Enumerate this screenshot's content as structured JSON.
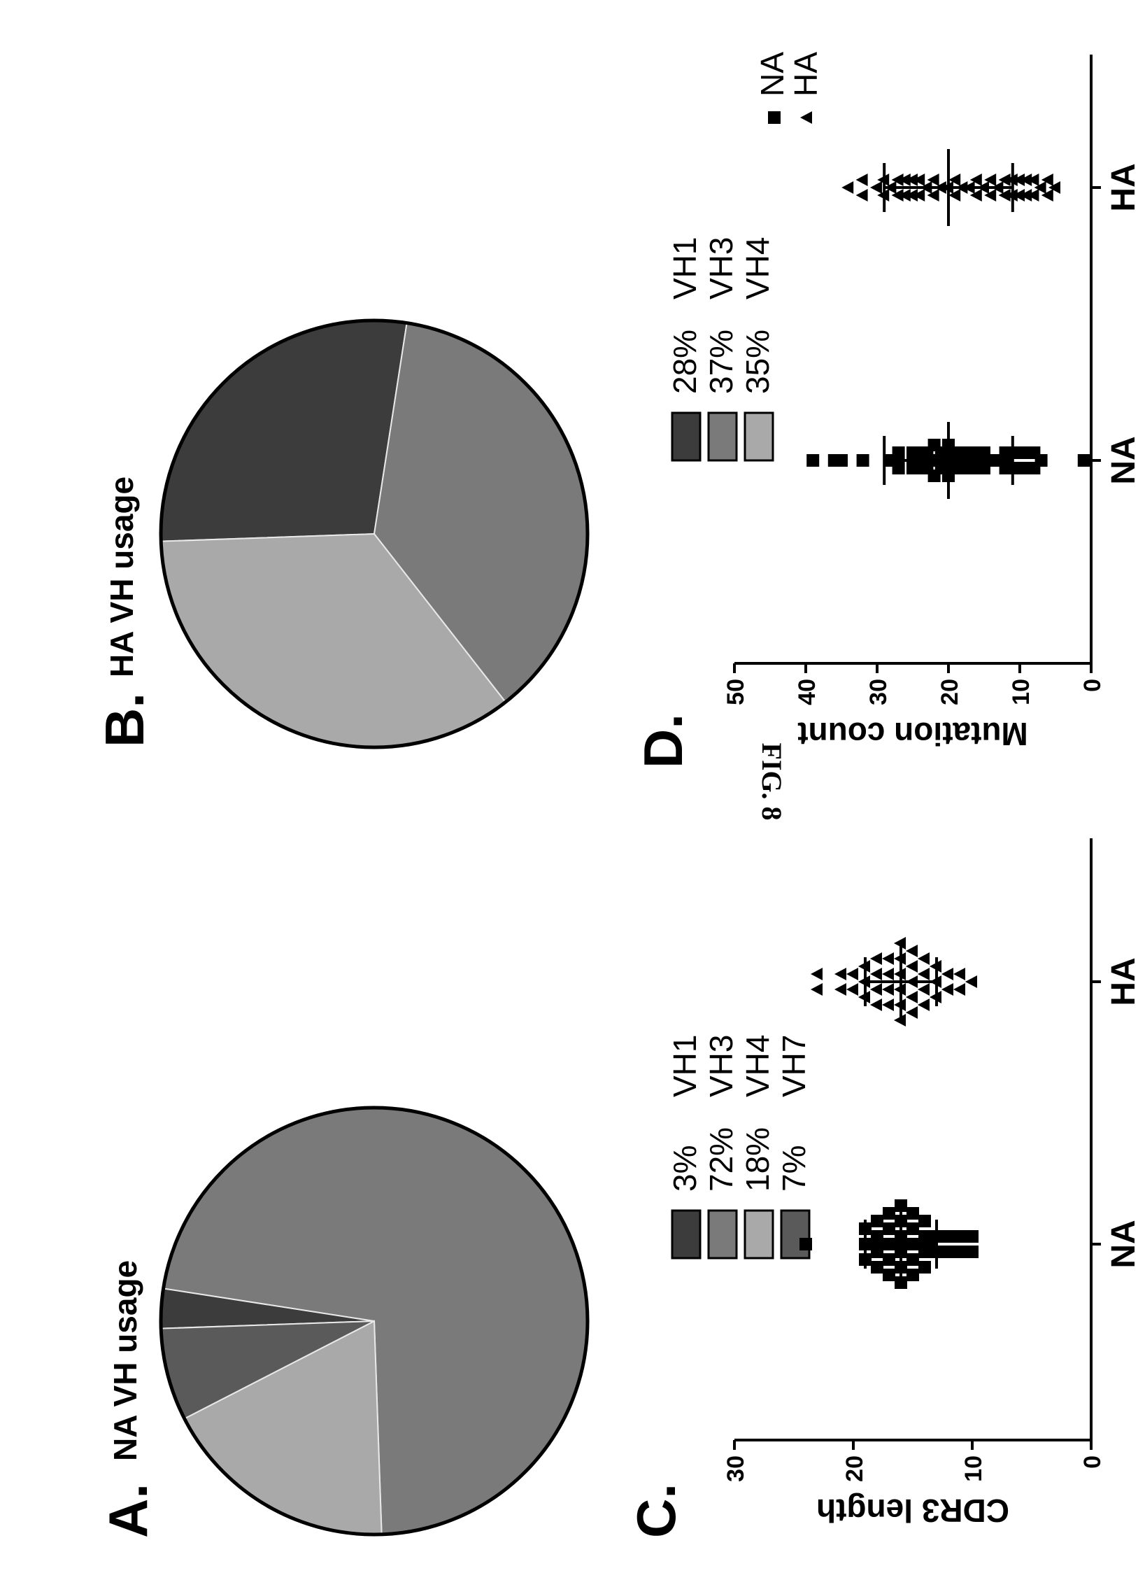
{
  "figure_label": "FIG. 8",
  "panels": {
    "A": {
      "letter": "A.",
      "title": "NA VH usage"
    },
    "B": {
      "letter": "B.",
      "title": "HA VH usage"
    },
    "C": {
      "letter": "C."
    },
    "D": {
      "letter": "D."
    }
  },
  "chart_data": [
    {
      "id": "A",
      "type": "pie",
      "title": "NA VH usage",
      "slices": [
        {
          "label": "VH1",
          "pct_label": "3%",
          "value": 3,
          "color": "#3c3c3c"
        },
        {
          "label": "VH3",
          "pct_label": "72%",
          "value": 72,
          "color": "#7a7a7a"
        },
        {
          "label": "VH4",
          "pct_label": "18%",
          "value": 18,
          "color": "#a9a9a9"
        },
        {
          "label": "VH7",
          "pct_label": "7%",
          "value": 7,
          "color": "#5a5a5a"
        }
      ]
    },
    {
      "id": "B",
      "type": "pie",
      "title": "HA VH usage",
      "slices": [
        {
          "label": "VH1",
          "pct_label": "28%",
          "value": 28,
          "color": "#3c3c3c"
        },
        {
          "label": "VH3",
          "pct_label": "37%",
          "value": 37,
          "color": "#7a7a7a"
        },
        {
          "label": "VH4",
          "pct_label": "35%",
          "value": 35,
          "color": "#a9a9a9"
        }
      ]
    },
    {
      "id": "C",
      "type": "scatter",
      "ylabel": "CDR3 length",
      "ylim": [
        0,
        30
      ],
      "yticks": [
        "0",
        "10",
        "20",
        "30"
      ],
      "categories": [
        "NA",
        "HA"
      ],
      "series": [
        {
          "name": "NA",
          "marker": "square",
          "values": [
            24,
            19,
            19,
            19,
            18,
            18,
            18,
            18,
            17,
            17,
            17,
            17,
            17,
            16,
            16,
            16,
            16,
            16,
            16,
            15,
            15,
            15,
            15,
            15,
            14,
            14,
            14,
            14,
            13,
            13,
            12,
            12,
            11,
            11,
            10,
            10
          ],
          "mean": 16,
          "sd": 3
        },
        {
          "name": "HA",
          "marker": "triangle",
          "values": [
            23,
            23,
            21,
            21,
            20,
            20,
            19,
            19,
            19,
            18,
            18,
            18,
            18,
            17,
            17,
            17,
            17,
            16,
            16,
            16,
            16,
            16,
            16,
            15,
            15,
            15,
            15,
            15,
            14,
            14,
            14,
            14,
            13,
            13,
            13,
            12,
            12,
            11,
            11,
            10
          ],
          "mean": 16,
          "sd": 3
        }
      ]
    },
    {
      "id": "D",
      "type": "scatter",
      "ylabel": "Mutation count",
      "ylim": [
        0,
        50
      ],
      "yticks": [
        "0",
        "10",
        "20",
        "30",
        "40",
        "50"
      ],
      "categories": [
        "NA",
        "HA"
      ],
      "legend": [
        {
          "name": "NA",
          "marker": "square"
        },
        {
          "name": "HA",
          "marker": "triangle"
        }
      ],
      "series": [
        {
          "name": "NA",
          "marker": "square",
          "values": [
            39,
            36,
            35,
            32,
            28,
            27,
            27,
            25,
            25,
            24,
            24,
            23,
            23,
            22,
            22,
            22,
            21,
            21,
            20,
            20,
            20,
            19,
            19,
            18,
            18,
            17,
            17,
            16,
            16,
            15,
            15,
            14,
            13,
            12,
            12,
            11,
            11,
            10,
            10,
            9,
            9,
            8,
            8,
            7,
            1
          ],
          "mean": 20,
          "sd": 9
        },
        {
          "name": "HA",
          "marker": "triangle",
          "values": [
            34,
            32,
            32,
            30,
            29,
            29,
            28,
            27,
            27,
            26,
            26,
            25,
            25,
            24,
            24,
            23,
            22,
            22,
            21,
            20,
            19,
            19,
            18,
            17,
            16,
            16,
            15,
            14,
            14,
            13,
            12,
            12,
            11,
            11,
            10,
            10,
            9,
            9,
            8,
            8,
            7,
            6,
            6,
            5
          ],
          "mean": 20,
          "sd": 9
        }
      ]
    }
  ]
}
